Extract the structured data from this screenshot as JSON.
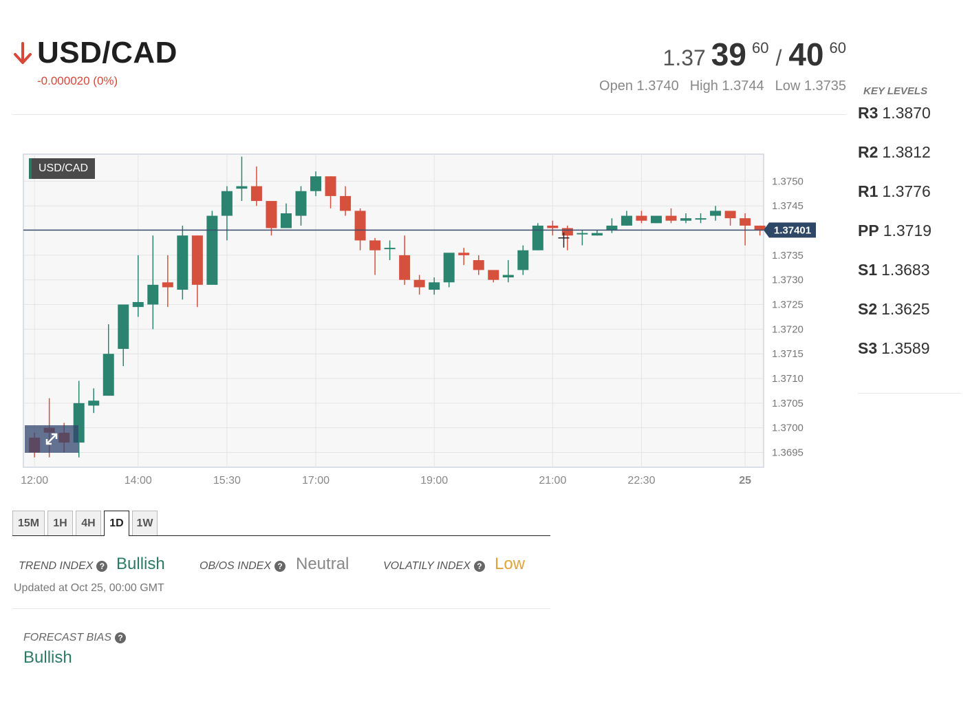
{
  "header": {
    "pair": "USD/CAD",
    "change": "-0.000020 (0%)",
    "direction": "down",
    "bid": {
      "prefix": "1.37",
      "big": "39",
      "pip": "60"
    },
    "slash": "/",
    "ask": {
      "big": "40",
      "pip": "60"
    },
    "open": "Open 1.3740",
    "high": "High 1.3744",
    "low": "Low 1.3735"
  },
  "key_levels": {
    "title": "KEY LEVELS",
    "levels": [
      {
        "name": "R3",
        "value": "1.3870"
      },
      {
        "name": "R2",
        "value": "1.3812"
      },
      {
        "name": "R1",
        "value": "1.3776"
      },
      {
        "name": "PP",
        "value": "1.3719"
      },
      {
        "name": "S1",
        "value": "1.3683"
      },
      {
        "name": "S2",
        "value": "1.3625"
      },
      {
        "name": "S3",
        "value": "1.3589"
      }
    ]
  },
  "chart": {
    "label": "USD/CAD",
    "current_price_label": "1.37401"
  },
  "chart_data": {
    "type": "candlestick",
    "title": "USD/CAD",
    "current_price": 1.37401,
    "y_ticks": [
      "1.3750",
      "1.3745",
      "1.3740",
      "1.3735",
      "1.3730",
      "1.3725",
      "1.3720",
      "1.3715",
      "1.3710",
      "1.3705",
      "1.3700",
      "1.3695"
    ],
    "ylim": [
      1.3692,
      1.37555
    ],
    "x_ticks": [
      "12:00",
      "14:00",
      "15:30",
      "17:00",
      "19:00",
      "21:00",
      "22:30",
      "25"
    ],
    "x_tick_positions": [
      0,
      14,
      26,
      38,
      54,
      70,
      82,
      96
    ],
    "xlim": [
      -1.5,
      98.5
    ],
    "grid": true,
    "colors": {
      "up": "#2b8470",
      "down": "#d6503e",
      "price_line": "#3b4e6e"
    },
    "candles": [
      {
        "i": 0,
        "o": 1.3698,
        "h": 1.3699,
        "l": 1.3694,
        "c": 1.3695
      },
      {
        "i": 2,
        "o": 1.37,
        "h": 1.3706,
        "l": 1.3694,
        "c": 1.3699
      },
      {
        "i": 4,
        "o": 1.3699,
        "h": 1.3701,
        "l": 1.3695,
        "c": 1.3697
      },
      {
        "i": 6,
        "o": 1.3697,
        "h": 1.37095,
        "l": 1.3694,
        "c": 1.3705
      },
      {
        "i": 8,
        "o": 1.37045,
        "h": 1.3708,
        "l": 1.3703,
        "c": 1.37055
      },
      {
        "i": 10,
        "o": 1.37065,
        "h": 1.3721,
        "l": 1.37065,
        "c": 1.3715
      },
      {
        "i": 12,
        "o": 1.3716,
        "h": 1.3725,
        "l": 1.37125,
        "c": 1.3725
      },
      {
        "i": 14,
        "o": 1.37245,
        "h": 1.3735,
        "l": 1.37225,
        "c": 1.37255
      },
      {
        "i": 16,
        "o": 1.3725,
        "h": 1.3739,
        "l": 1.372,
        "c": 1.3729
      },
      {
        "i": 18,
        "o": 1.37295,
        "h": 1.3735,
        "l": 1.37245,
        "c": 1.37285
      },
      {
        "i": 20,
        "o": 1.3728,
        "h": 1.3741,
        "l": 1.3726,
        "c": 1.3739
      },
      {
        "i": 22,
        "o": 1.3739,
        "h": 1.3739,
        "l": 1.37245,
        "c": 1.3729
      },
      {
        "i": 24,
        "o": 1.3729,
        "h": 1.3744,
        "l": 1.3729,
        "c": 1.3743
      },
      {
        "i": 26,
        "o": 1.3743,
        "h": 1.3749,
        "l": 1.3738,
        "c": 1.3748
      },
      {
        "i": 28,
        "o": 1.37485,
        "h": 1.3755,
        "l": 1.3746,
        "c": 1.3749
      },
      {
        "i": 30,
        "o": 1.3749,
        "h": 1.3753,
        "l": 1.3745,
        "c": 1.3746
      },
      {
        "i": 32,
        "o": 1.3746,
        "h": 1.3746,
        "l": 1.3739,
        "c": 1.37405
      },
      {
        "i": 34,
        "o": 1.37405,
        "h": 1.37455,
        "l": 1.37405,
        "c": 1.37435
      },
      {
        "i": 36,
        "o": 1.3743,
        "h": 1.3749,
        "l": 1.3741,
        "c": 1.3748
      },
      {
        "i": 38,
        "o": 1.3748,
        "h": 1.3752,
        "l": 1.3747,
        "c": 1.3751
      },
      {
        "i": 40,
        "o": 1.3751,
        "h": 1.3751,
        "l": 1.37445,
        "c": 1.3747
      },
      {
        "i": 42,
        "o": 1.3747,
        "h": 1.3749,
        "l": 1.3743,
        "c": 1.3744
      },
      {
        "i": 44,
        "o": 1.3744,
        "h": 1.37445,
        "l": 1.3736,
        "c": 1.3738
      },
      {
        "i": 46,
        "o": 1.3738,
        "h": 1.37385,
        "l": 1.3731,
        "c": 1.3736
      },
      {
        "i": 48,
        "o": 1.37365,
        "h": 1.3738,
        "l": 1.3734,
        "c": 1.37365
      },
      {
        "i": 50,
        "o": 1.3735,
        "h": 1.3739,
        "l": 1.3729,
        "c": 1.373
      },
      {
        "i": 52,
        "o": 1.373,
        "h": 1.3731,
        "l": 1.3727,
        "c": 1.37285
      },
      {
        "i": 54,
        "o": 1.3728,
        "h": 1.37305,
        "l": 1.3727,
        "c": 1.37295
      },
      {
        "i": 56,
        "o": 1.37295,
        "h": 1.3735,
        "l": 1.37285,
        "c": 1.37355
      },
      {
        "i": 58,
        "o": 1.37355,
        "h": 1.37365,
        "l": 1.3733,
        "c": 1.3735
      },
      {
        "i": 60,
        "o": 1.3734,
        "h": 1.3735,
        "l": 1.3731,
        "c": 1.3732
      },
      {
        "i": 62,
        "o": 1.3732,
        "h": 1.3732,
        "l": 1.37295,
        "c": 1.373
      },
      {
        "i": 64,
        "o": 1.37305,
        "h": 1.3734,
        "l": 1.37295,
        "c": 1.3731
      },
      {
        "i": 66,
        "o": 1.3732,
        "h": 1.3737,
        "l": 1.3731,
        "c": 1.3736
      },
      {
        "i": 68,
        "o": 1.3736,
        "h": 1.37415,
        "l": 1.3736,
        "c": 1.3741
      },
      {
        "i": 70,
        "o": 1.3741,
        "h": 1.3742,
        "l": 1.3739,
        "c": 1.37405
      },
      {
        "i": 72,
        "o": 1.37405,
        "h": 1.3741,
        "l": 1.3736,
        "c": 1.3739
      },
      {
        "i": 74,
        "o": 1.37395,
        "h": 1.374,
        "l": 1.3737,
        "c": 1.37395
      },
      {
        "i": 76,
        "o": 1.3739,
        "h": 1.374,
        "l": 1.3739,
        "c": 1.37395
      },
      {
        "i": 78,
        "o": 1.374,
        "h": 1.37425,
        "l": 1.37395,
        "c": 1.3741
      },
      {
        "i": 80,
        "o": 1.3741,
        "h": 1.3744,
        "l": 1.3741,
        "c": 1.3743
      },
      {
        "i": 82,
        "o": 1.3743,
        "h": 1.3744,
        "l": 1.37415,
        "c": 1.3742
      },
      {
        "i": 84,
        "o": 1.37415,
        "h": 1.3743,
        "l": 1.37415,
        "c": 1.3743
      },
      {
        "i": 86,
        "o": 1.3743,
        "h": 1.37445,
        "l": 1.37415,
        "c": 1.3742
      },
      {
        "i": 88,
        "o": 1.3742,
        "h": 1.37435,
        "l": 1.37415,
        "c": 1.37425
      },
      {
        "i": 90,
        "o": 1.37425,
        "h": 1.37435,
        "l": 1.37415,
        "c": 1.37425
      },
      {
        "i": 92,
        "o": 1.3743,
        "h": 1.3745,
        "l": 1.3742,
        "c": 1.3744
      },
      {
        "i": 94,
        "o": 1.3744,
        "h": 1.3744,
        "l": 1.3741,
        "c": 1.37425
      },
      {
        "i": 96,
        "o": 1.37425,
        "h": 1.37435,
        "l": 1.3737,
        "c": 1.3741
      },
      {
        "i": 98,
        "o": 1.3741,
        "h": 1.3741,
        "l": 1.3739,
        "c": 1.37401
      }
    ]
  },
  "timeframes": {
    "tabs": [
      "15M",
      "1H",
      "4H",
      "1D",
      "1W"
    ],
    "active": "1D"
  },
  "indices": {
    "trend": {
      "label": "TREND INDEX",
      "value": "Bullish",
      "color": "#2b7a66"
    },
    "obos": {
      "label": "OB/OS INDEX",
      "value": "Neutral",
      "color": "#888888"
    },
    "volatility": {
      "label": "VOLATILY INDEX",
      "value": "Low",
      "color": "#e0a43a"
    },
    "updated": "Updated at Oct 25, 00:00 GMT"
  },
  "forecast": {
    "label": "FORECAST BIAS",
    "value": "Bullish"
  },
  "icons": {
    "direction": "arrow-down-icon",
    "help": "question-circle-icon",
    "expand": "expand-diagonal-icon"
  }
}
